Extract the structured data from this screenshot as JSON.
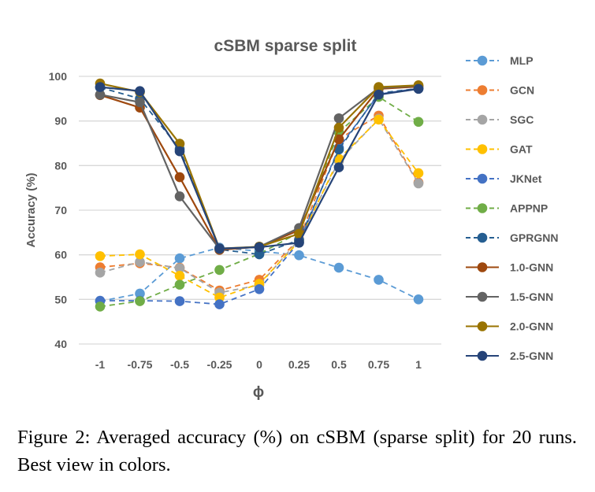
{
  "chart_data": {
    "type": "line",
    "title": "cSBM sparse split",
    "xlabel": "ϕ",
    "ylabel": "Accuracy (%)",
    "categories": [
      "-1",
      "-0.75",
      "-0.5",
      "-0.25",
      "0",
      "0.25",
      "0.5",
      "0.75",
      "1"
    ],
    "ylim": [
      40,
      100
    ],
    "yticks": [
      40,
      50,
      60,
      70,
      80,
      90,
      100
    ],
    "grid": true,
    "legend_placement": "right",
    "series": [
      {
        "name": "MLP",
        "color": "#5B9BD5",
        "dashed": true,
        "values": [
          49.6,
          51.3,
          59.2,
          61.6,
          60.8,
          59.9,
          57.1,
          54.4,
          50.0
        ]
      },
      {
        "name": "GCN",
        "color": "#ED7D31",
        "dashed": true,
        "values": [
          57.2,
          58.1,
          57.1,
          52.0,
          54.4,
          63.5,
          86.0,
          91.2,
          76.2
        ]
      },
      {
        "name": "SGC",
        "color": "#A5A5A5",
        "dashed": true,
        "values": [
          56.0,
          58.4,
          57.0,
          51.5,
          53.2,
          63.4,
          81.0,
          90.5,
          76.0
        ]
      },
      {
        "name": "GAT",
        "color": "#FFC000",
        "dashed": true,
        "values": [
          59.7,
          60.1,
          55.3,
          50.4,
          53.5,
          63.0,
          81.5,
          90.3,
          78.3
        ]
      },
      {
        "name": "JKNet",
        "color": "#4472C4",
        "dashed": true,
        "values": [
          49.7,
          49.7,
          49.6,
          48.9,
          52.3,
          62.8,
          84.0,
          96.0,
          97.3
        ]
      },
      {
        "name": "APPNP",
        "color": "#70AD47",
        "dashed": true,
        "values": [
          48.4,
          49.6,
          53.3,
          56.6,
          60.2,
          65.0,
          87.5,
          95.4,
          89.8
        ]
      },
      {
        "name": "GPRGNN",
        "color": "#255E91",
        "dashed": true,
        "values": [
          97.5,
          95.0,
          83.7,
          61.2,
          60.1,
          63.3,
          83.6,
          96.2,
          97.3
        ]
      },
      {
        "name": "1.0-GNN",
        "color": "#9E480E",
        "dashed": false,
        "values": [
          95.8,
          93.0,
          77.4,
          61.1,
          61.8,
          65.5,
          85.9,
          97.2,
          97.7
        ]
      },
      {
        "name": "1.5-GNN",
        "color": "#636363",
        "dashed": false,
        "values": [
          95.9,
          94.2,
          73.1,
          61.3,
          61.8,
          66.0,
          90.6,
          97.4,
          97.9
        ]
      },
      {
        "name": "2.0-GNN",
        "color": "#997300",
        "dashed": false,
        "values": [
          98.4,
          96.5,
          84.9,
          61.4,
          61.8,
          64.7,
          88.5,
          97.6,
          98.0
        ]
      },
      {
        "name": "2.5-GNN",
        "color": "#264478",
        "dashed": false,
        "values": [
          97.6,
          96.7,
          83.2,
          61.4,
          61.7,
          62.7,
          79.6,
          95.9,
          97.2
        ]
      }
    ]
  },
  "caption": "Figure 2: Averaged accuracy (%) on cSBM (sparse split) for 20 runs. Best view in colors."
}
